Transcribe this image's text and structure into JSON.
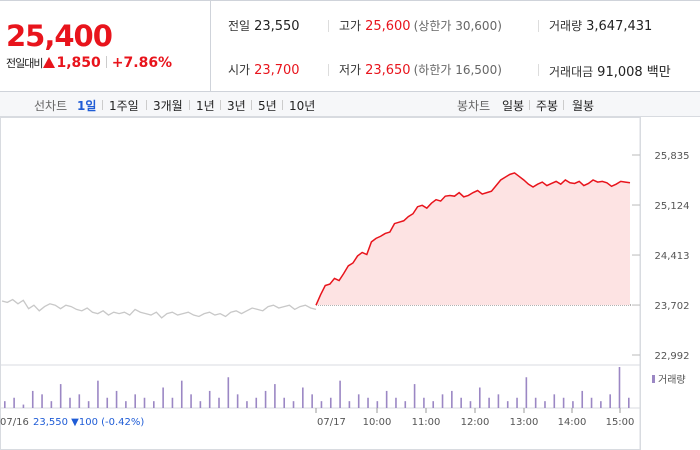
{
  "quote": {
    "price": "25,400",
    "change_label": "전일대비",
    "change_value": "1,850",
    "change_pct": "+7.86%"
  },
  "stats": {
    "prev_close": {
      "label": "전일",
      "value": "23,550"
    },
    "high": {
      "label": "고가",
      "value": "25,600",
      "sub": "(상한가 30,600)"
    },
    "volume": {
      "label": "거래량",
      "value": "3,647,431"
    },
    "open": {
      "label": "시가",
      "value": "23,700"
    },
    "low": {
      "label": "저가",
      "value": "23,650",
      "sub": "(하한가 16,500)"
    },
    "trade_value": {
      "label": "거래대금",
      "value": "91,008 백만"
    }
  },
  "period_bar": {
    "line_label": "선차트",
    "line_items": [
      "1일",
      "1주일",
      "3개월",
      "1년",
      "3년",
      "5년",
      "10년"
    ],
    "active": "1일",
    "candle_label": "봉차트",
    "candle_items": [
      "일봉",
      "주봉",
      "월봉"
    ]
  },
  "colors": {
    "up": "#e8141c",
    "down": "#1f5cd6",
    "prev_day_line": "#c8c8c8",
    "volume": "#9b87c4"
  },
  "chart_data": {
    "type": "line",
    "ylim": [
      22992,
      25835
    ],
    "y_ticks": [
      "25,835",
      "25,124",
      "24,413",
      "23,702",
      "22,992"
    ],
    "y_tick_values": [
      25835,
      25124,
      24413,
      23702,
      22992
    ],
    "prev_day": {
      "date": "07/16",
      "close": "23,550",
      "change": "▼100 (-0.42%)",
      "values": [
        23760,
        23740,
        23780,
        23720,
        23770,
        23650,
        23700,
        23620,
        23680,
        23720,
        23700,
        23650,
        23700,
        23680,
        23640,
        23620,
        23660,
        23600,
        23580,
        23620,
        23560,
        23600,
        23580,
        23600,
        23560,
        23640,
        23600,
        23580,
        23560,
        23600,
        23520,
        23580,
        23600,
        23560,
        23580,
        23600,
        23560,
        23540,
        23580,
        23600,
        23560,
        23580,
        23540,
        23600,
        23620,
        23580,
        23620,
        23660,
        23640,
        23620,
        23680,
        23700,
        23660,
        23680,
        23700,
        23640,
        23680,
        23700,
        23660,
        23640
      ]
    },
    "today": {
      "date": "07/17",
      "baseline": 23702,
      "values": [
        23700,
        23850,
        23980,
        24000,
        24080,
        24050,
        24150,
        24260,
        24300,
        24400,
        24450,
        24420,
        24600,
        24650,
        24680,
        24720,
        24740,
        24860,
        24880,
        24900,
        24960,
        25000,
        25100,
        25120,
        25080,
        25150,
        25200,
        25180,
        25250,
        25260,
        25250,
        25300,
        25240,
        25260,
        25300,
        25330,
        25280,
        25300,
        25320,
        25400,
        25480,
        25520,
        25560,
        25580,
        25530,
        25480,
        25420,
        25380,
        25420,
        25450,
        25400,
        25430,
        25460,
        25420,
        25480,
        25440,
        25430,
        25460,
        25400,
        25430,
        25480,
        25450,
        25460,
        25440,
        25390,
        25420,
        25460,
        25450,
        25440
      ]
    },
    "x_ticks": [
      "10:00",
      "11:00",
      "12:00",
      "13:00",
      "14:00",
      "15:00"
    ],
    "volume_label": "거래량",
    "volume": [
      2,
      3,
      1,
      5,
      4,
      2,
      7,
      3,
      4,
      2,
      8,
      3,
      5,
      2,
      4,
      3,
      2,
      6,
      3,
      8,
      4,
      2,
      5,
      3,
      9,
      4,
      2,
      3,
      5,
      7,
      3,
      2,
      6,
      4,
      2,
      3,
      8,
      2,
      4,
      3,
      2,
      5,
      3,
      2,
      7,
      3,
      2,
      4,
      5,
      3,
      2,
      6,
      3,
      4,
      2,
      3,
      9,
      3,
      2,
      4,
      3,
      2,
      5,
      3,
      2,
      4,
      12,
      3
    ]
  }
}
